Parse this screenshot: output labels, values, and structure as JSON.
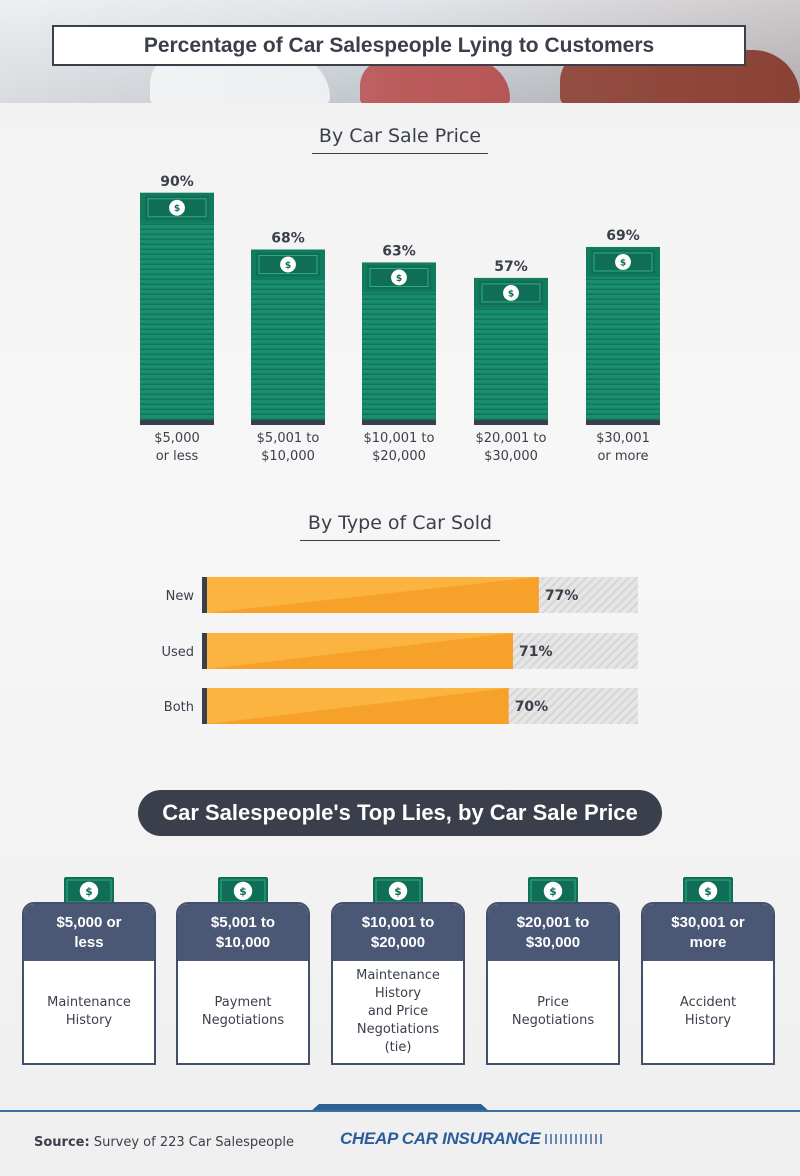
{
  "title": "Percentage of Car Salespeople Lying to Customers",
  "chart_data": [
    {
      "type": "bar",
      "title": "By Car Sale Price",
      "categories": [
        [
          "$5,000",
          "or less"
        ],
        [
          "$5,001 to",
          "$10,000"
        ],
        [
          "$10,001 to",
          "$20,000"
        ],
        [
          "$20,001 to",
          "$30,000"
        ],
        [
          "$30,001",
          "or more"
        ]
      ],
      "values": [
        90,
        68,
        63,
        57,
        69
      ],
      "value_labels": [
        "90%",
        "68%",
        "63%",
        "57%",
        "69%"
      ],
      "ylim": [
        0,
        100
      ],
      "color": "#1a8f6f"
    },
    {
      "type": "bar",
      "orientation": "horizontal",
      "title": "By Type of Car Sold",
      "categories": [
        "New",
        "Used",
        "Both"
      ],
      "values": [
        77,
        71,
        70
      ],
      "value_labels": [
        "77%",
        "71%",
        "70%"
      ],
      "xlim": [
        0,
        100
      ],
      "color": "#f7a531",
      "track_color": "#e3e3e3"
    }
  ],
  "top_lies": {
    "title": "Car Salespeople's Top Lies, by Car Sale Price",
    "cards": [
      {
        "price": [
          "$5,000 or",
          "less"
        ],
        "lie": [
          "Maintenance",
          "History"
        ]
      },
      {
        "price": [
          "$5,001 to",
          "$10,000"
        ],
        "lie": [
          "Payment",
          "Negotiations"
        ]
      },
      {
        "price": [
          "$10,001 to",
          "$20,000"
        ],
        "lie": [
          "Maintenance",
          "History",
          "and Price",
          "Negotiations",
          "(tie)"
        ]
      },
      {
        "price": [
          "$20,001 to",
          "$30,000"
        ],
        "lie": [
          "Price",
          "Negotiations"
        ]
      },
      {
        "price": [
          "$30,001 or",
          "more"
        ],
        "lie": [
          "Accident",
          "History"
        ]
      }
    ],
    "icon": "dollar-bill-icon"
  },
  "footer": {
    "source_label": "Source:",
    "source_text": "Survey of 223 Car Salespeople",
    "brand": "CHEAP CAR INSURANCE"
  }
}
